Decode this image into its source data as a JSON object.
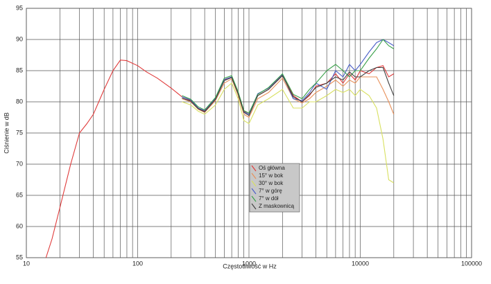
{
  "chart_data": {
    "type": "line",
    "xlabel": "Częstotliwość w Hz",
    "ylabel": "Ciśnienie w dB",
    "x": [
      15,
      17,
      20,
      25,
      30,
      35,
      40,
      50,
      60,
      70,
      80,
      100,
      120,
      150,
      200,
      250,
      300,
      350,
      400,
      500,
      600,
      700,
      800,
      900,
      1000,
      1200,
      1500,
      2000,
      2500,
      3000,
      3500,
      4000,
      5000,
      6000,
      7000,
      8000,
      9000,
      10000,
      12000,
      14000,
      16000,
      18000,
      20000
    ],
    "xscale": "log",
    "xlim": [
      10,
      100000
    ],
    "xticks": [
      10,
      100,
      1000,
      10000,
      100000
    ],
    "ylim": [
      55,
      95
    ],
    "yticks": [
      55,
      60,
      65,
      70,
      75,
      80,
      85,
      90,
      95
    ],
    "grid": true,
    "minor_grid": true,
    "legend": "center",
    "series": [
      {
        "name": "Oś główna",
        "color": "#e03a3a",
        "values": [
          55,
          58,
          63,
          70,
          75,
          76.5,
          78,
          82,
          85,
          86.7,
          86.6,
          85.8,
          84.8,
          83.8,
          82.2,
          80.8,
          80.2,
          79,
          78.5,
          80.5,
          83.5,
          84,
          81.5,
          78.5,
          78,
          81,
          82,
          84.3,
          81,
          80,
          81,
          82.5,
          83,
          84.5,
          83,
          84.5,
          83.5,
          85,
          84.5,
          85.5,
          85.8,
          84,
          84.5
        ]
      },
      {
        "name": "15° w bok",
        "color": "#e8905a",
        "values": [
          null,
          null,
          null,
          null,
          null,
          null,
          null,
          null,
          null,
          null,
          null,
          null,
          null,
          null,
          null,
          80.5,
          80,
          78.8,
          78.3,
          80.2,
          83,
          83.7,
          81,
          78,
          77.5,
          80.5,
          81.5,
          83.8,
          80.5,
          79.8,
          80.5,
          81.5,
          82.5,
          83.5,
          82.5,
          83.5,
          83,
          84,
          84,
          84,
          82,
          80,
          78
        ]
      },
      {
        "name": "30° w bok",
        "color": "#d8e060",
        "values": [
          null,
          null,
          null,
          null,
          null,
          null,
          null,
          null,
          null,
          null,
          null,
          null,
          null,
          null,
          null,
          80,
          79.5,
          78.5,
          78,
          79.5,
          82,
          83,
          80.5,
          77,
          76.5,
          79.5,
          80.5,
          82,
          79,
          79,
          80,
          80,
          81,
          82,
          81.5,
          82,
          81,
          82,
          81,
          79,
          74,
          67.5,
          67
        ]
      },
      {
        "name": "7° w górę",
        "color": "#4a5ec8",
        "values": [
          null,
          null,
          null,
          null,
          null,
          null,
          null,
          null,
          null,
          null,
          null,
          null,
          null,
          null,
          null,
          80.8,
          80.3,
          79,
          78.6,
          80.6,
          83.6,
          84,
          81.4,
          78.4,
          78,
          81.3,
          82.2,
          84.4,
          80.5,
          80.2,
          81.5,
          83,
          82,
          85,
          84,
          86,
          85,
          86,
          88,
          89.5,
          90,
          89.5,
          89
        ]
      },
      {
        "name": "7° w dół",
        "color": "#3aa04a",
        "values": [
          null,
          null,
          null,
          null,
          null,
          null,
          null,
          null,
          null,
          null,
          null,
          null,
          null,
          null,
          null,
          81,
          80.4,
          79.2,
          78.7,
          80.7,
          83.8,
          84.2,
          81.6,
          78.6,
          78.2,
          81.2,
          82.3,
          84.5,
          81.2,
          80.5,
          82,
          83,
          85,
          86,
          85,
          84,
          85,
          85,
          87,
          88.5,
          90,
          89,
          88.5
        ]
      },
      {
        "name": "Z maskownicą",
        "color": "#404040",
        "values": [
          null,
          null,
          null,
          null,
          null,
          null,
          null,
          null,
          null,
          null,
          null,
          null,
          null,
          null,
          null,
          80.6,
          80.1,
          78.9,
          78.4,
          80.4,
          83.4,
          83.9,
          81.3,
          78.3,
          77.8,
          81,
          82,
          84.2,
          80.8,
          80,
          81.2,
          82.3,
          83,
          84,
          83.5,
          84.8,
          84,
          84,
          85,
          85.5,
          85.5,
          83,
          81
        ]
      }
    ]
  }
}
